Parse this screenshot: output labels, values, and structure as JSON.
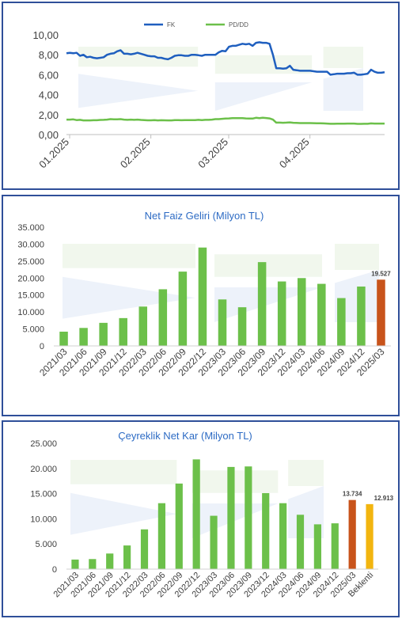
{
  "colors": {
    "green": "#6cc04a",
    "blue": "#1f5fbf",
    "orange": "#c8531b",
    "gold": "#f2b50f",
    "title_blue": "#2d6bc4",
    "border": "#2f4f99"
  },
  "chart_data": [
    {
      "type": "line",
      "title": "",
      "legend_position": "top-center",
      "x_ticks": [
        "01.2025",
        "02.2025",
        "03.2025",
        "04.2025"
      ],
      "ylim": [
        0,
        10
      ],
      "y_ticks": [
        "0,00",
        "2,00",
        "4,00",
        "6,00",
        "8,00",
        "10,00"
      ],
      "grid": false,
      "series": [
        {
          "name": "FK",
          "color": "#1f5fbf",
          "values": [
            8.15,
            8.2,
            8.15,
            8.2,
            7.9,
            8.0,
            7.75,
            7.8,
            7.7,
            7.65,
            7.7,
            7.75,
            8.0,
            8.1,
            8.15,
            8.35,
            8.45,
            8.1,
            8.1,
            8.05,
            8.1,
            8.2,
            8.1,
            8.0,
            7.9,
            7.85,
            7.85,
            7.7,
            7.7,
            7.6,
            7.55,
            7.7,
            7.9,
            7.95,
            7.95,
            7.9,
            7.9,
            8.0,
            8.0,
            7.95,
            7.9,
            8.0,
            8.0,
            8.0,
            8.0,
            8.25,
            8.4,
            8.35,
            8.8,
            8.9,
            8.9,
            9.0,
            9.1,
            9.05,
            9.1,
            8.9,
            9.2,
            9.25,
            9.2,
            9.2,
            9.1,
            8.0,
            6.65,
            6.65,
            6.6,
            6.65,
            6.9,
            6.5,
            6.45,
            6.4,
            6.4,
            6.4,
            6.4,
            6.35,
            6.3,
            6.3,
            6.3,
            6.3,
            6.0,
            6.05,
            6.1,
            6.1,
            6.1,
            6.15,
            6.15,
            6.2,
            6.0,
            6.0,
            6.05,
            6.1,
            6.5,
            6.3,
            6.2,
            6.2,
            6.25
          ]
        },
        {
          "name": "PD/DD",
          "color": "#6cc04a",
          "values": [
            1.5,
            1.5,
            1.52,
            1.45,
            1.48,
            1.42,
            1.42,
            1.42,
            1.44,
            1.44,
            1.47,
            1.48,
            1.5,
            1.55,
            1.52,
            1.52,
            1.55,
            1.5,
            1.48,
            1.5,
            1.48,
            1.5,
            1.47,
            1.45,
            1.43,
            1.43,
            1.45,
            1.42,
            1.44,
            1.43,
            1.42,
            1.42,
            1.45,
            1.45,
            1.44,
            1.45,
            1.45,
            1.45,
            1.45,
            1.48,
            1.45,
            1.48,
            1.48,
            1.5,
            1.55,
            1.55,
            1.58,
            1.6,
            1.62,
            1.65,
            1.65,
            1.65,
            1.65,
            1.62,
            1.6,
            1.6,
            1.68,
            1.65,
            1.68,
            1.66,
            1.62,
            1.5,
            1.2,
            1.2,
            1.18,
            1.2,
            1.22,
            1.18,
            1.17,
            1.15,
            1.15,
            1.15,
            1.15,
            1.14,
            1.13,
            1.13,
            1.12,
            1.1,
            1.08,
            1.08,
            1.09,
            1.09,
            1.09,
            1.1,
            1.1,
            1.1,
            1.07,
            1.07,
            1.08,
            1.08,
            1.12,
            1.1,
            1.1,
            1.1,
            1.1
          ]
        }
      ]
    },
    {
      "type": "bar",
      "title": "Net Faiz Geliri (Milyon TL)",
      "ylim": [
        0,
        35000
      ],
      "y_ticks": [
        "0",
        "5.000",
        "10.000",
        "15.000",
        "20.000",
        "25.000",
        "30.000",
        "35.000"
      ],
      "categories": [
        "2021/03",
        "2021/06",
        "2021/09",
        "2021/12",
        "2022/03",
        "2022/06",
        "2022/09",
        "2022/12",
        "2023/03",
        "2023/06",
        "2023/09",
        "2023/12",
        "2024/03",
        "2024/06",
        "2024/09",
        "2024/12",
        "2025/03"
      ],
      "values": [
        4200,
        5300,
        6800,
        8200,
        11600,
        16700,
        21900,
        29000,
        13700,
        11400,
        24700,
        19000,
        20000,
        18300,
        14100,
        17500,
        19527
      ],
      "bar_colors": [
        "#6cc04a",
        "#6cc04a",
        "#6cc04a",
        "#6cc04a",
        "#6cc04a",
        "#6cc04a",
        "#6cc04a",
        "#6cc04a",
        "#6cc04a",
        "#6cc04a",
        "#6cc04a",
        "#6cc04a",
        "#6cc04a",
        "#6cc04a",
        "#6cc04a",
        "#6cc04a",
        "#c8531b"
      ],
      "data_labels": [
        "",
        "",
        "",
        "",
        "",
        "",
        "",
        "",
        "",
        "",
        "",
        "",
        "",
        "",
        "",
        "",
        "19.527"
      ],
      "grid": false
    },
    {
      "type": "bar",
      "title": "Çeyreklik Net Kar (Milyon TL)",
      "ylim": [
        0,
        25000
      ],
      "y_ticks": [
        "0",
        "5.000",
        "10.000",
        "15.000",
        "20.000",
        "25.000"
      ],
      "categories": [
        "2021/03",
        "2021/06",
        "2021/09",
        "2021/12",
        "2022/03",
        "2022/06",
        "2022/09",
        "2022/12",
        "2023/03",
        "2023/06",
        "2023/09",
        "2023/12",
        "2024/03",
        "2024/06",
        "2024/09",
        "2024/12",
        "2025/03",
        "Beklenti"
      ],
      "values": [
        1900,
        2000,
        3100,
        4700,
        7900,
        13100,
        17000,
        21800,
        10600,
        20300,
        20400,
        15100,
        13100,
        10800,
        8900,
        9100,
        13734,
        12913
      ],
      "bar_colors": [
        "#6cc04a",
        "#6cc04a",
        "#6cc04a",
        "#6cc04a",
        "#6cc04a",
        "#6cc04a",
        "#6cc04a",
        "#6cc04a",
        "#6cc04a",
        "#6cc04a",
        "#6cc04a",
        "#6cc04a",
        "#6cc04a",
        "#6cc04a",
        "#6cc04a",
        "#6cc04a",
        "#c8531b",
        "#f2b50f"
      ],
      "data_labels": [
        "",
        "",
        "",
        "",
        "",
        "",
        "",
        "",
        "",
        "",
        "",
        "",
        "",
        "",
        "",
        "",
        "13.734",
        "12.913"
      ],
      "grid": false
    }
  ]
}
